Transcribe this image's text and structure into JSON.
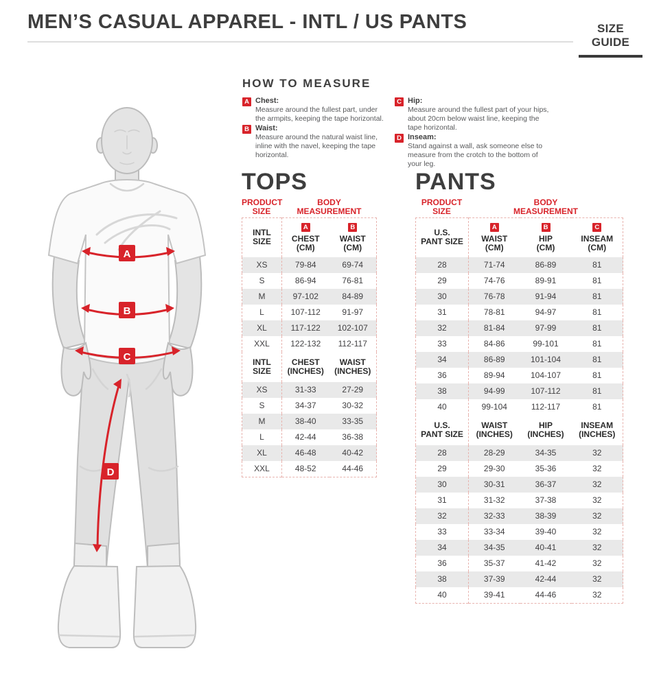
{
  "header": {
    "title": "MEN’S CASUAL APPAREL - INTL / US PANTS",
    "size_guide_label": "SIZE GUIDE"
  },
  "colors": {
    "accent": "#d8232a",
    "dash": "#e8b3ae",
    "heading": "#3e3e3e",
    "row_alt": "#e9e9e9",
    "desc_text": "#58595b",
    "cell_text": "#414042",
    "divider": "#dedede"
  },
  "how_to_measure": {
    "title": "HOW TO MEASURE",
    "items": [
      {
        "marker": "A",
        "label": "Chest:",
        "text": "Measure around the fullest part, under the armpits, keeping the tape horizontal."
      },
      {
        "marker": "B",
        "label": "Waist:",
        "text": "Measure around the natural waist line, inline with the navel, keeping the tape horizontal."
      },
      {
        "marker": "C",
        "label": "Hip:",
        "text": "Measure around the fullest part of your hips, about 20cm below waist line, keeping the tape horizontal."
      },
      {
        "marker": "D",
        "label": "Inseam:",
        "text": "Stand against a wall, ask someone else to measure from the crotch to the bottom of your leg."
      }
    ]
  },
  "figure": {
    "markers": [
      "A",
      "B",
      "C",
      "D"
    ]
  },
  "tops": {
    "title": "TOPS",
    "group_headers": {
      "product": "PRODUCT\nSIZE",
      "body": "BODY\nMEASUREMENT"
    },
    "cm": {
      "size_label": "INTL\nSIZE",
      "columns": [
        {
          "marker": "A",
          "label": "CHEST\n(CM)"
        },
        {
          "marker": "B",
          "label": "WAIST\n(CM)"
        }
      ],
      "rows": [
        {
          "size": "XS",
          "values": [
            "79-84",
            "69-74"
          ]
        },
        {
          "size": "S",
          "values": [
            "86-94",
            "76-81"
          ]
        },
        {
          "size": "M",
          "values": [
            "97-102",
            "84-89"
          ]
        },
        {
          "size": "L",
          "values": [
            "107-112",
            "91-97"
          ]
        },
        {
          "size": "XL",
          "values": [
            "117-122",
            "102-107"
          ]
        },
        {
          "size": "XXL",
          "values": [
            "122-132",
            "112-117"
          ]
        }
      ]
    },
    "inches": {
      "size_label": "INTL\nSIZE",
      "columns": [
        {
          "label": "CHEST\n(INCHES)"
        },
        {
          "label": "WAIST\n(INCHES)"
        }
      ],
      "rows": [
        {
          "size": "XS",
          "values": [
            "31-33",
            "27-29"
          ]
        },
        {
          "size": "S",
          "values": [
            "34-37",
            "30-32"
          ]
        },
        {
          "size": "M",
          "values": [
            "38-40",
            "33-35"
          ]
        },
        {
          "size": "L",
          "values": [
            "42-44",
            "36-38"
          ]
        },
        {
          "size": "XL",
          "values": [
            "46-48",
            "40-42"
          ]
        },
        {
          "size": "XXL",
          "values": [
            "48-52",
            "44-46"
          ]
        }
      ]
    }
  },
  "pants": {
    "title": "PANTS",
    "group_headers": {
      "product": "PRODUCT\nSIZE",
      "body": "BODY\nMEASUREMENT"
    },
    "cm": {
      "size_label": "U.S.\nPANT SIZE",
      "columns": [
        {
          "marker": "A",
          "label": "WAIST\n(CM)"
        },
        {
          "marker": "B",
          "label": "HIP\n(CM)"
        },
        {
          "marker": "C",
          "label": "INSEAM\n(CM)"
        }
      ],
      "rows": [
        {
          "size": "28",
          "values": [
            "71-74",
            "86-89",
            "81"
          ]
        },
        {
          "size": "29",
          "values": [
            "74-76",
            "89-91",
            "81"
          ]
        },
        {
          "size": "30",
          "values": [
            "76-78",
            "91-94",
            "81"
          ]
        },
        {
          "size": "31",
          "values": [
            "78-81",
            "94-97",
            "81"
          ]
        },
        {
          "size": "32",
          "values": [
            "81-84",
            "97-99",
            "81"
          ]
        },
        {
          "size": "33",
          "values": [
            "84-86",
            "99-101",
            "81"
          ]
        },
        {
          "size": "34",
          "values": [
            "86-89",
            "101-104",
            "81"
          ]
        },
        {
          "size": "36",
          "values": [
            "89-94",
            "104-107",
            "81"
          ]
        },
        {
          "size": "38",
          "values": [
            "94-99",
            "107-112",
            "81"
          ]
        },
        {
          "size": "40",
          "values": [
            "99-104",
            "112-117",
            "81"
          ]
        }
      ]
    },
    "inches": {
      "size_label": "U.S.\nPANT SIZE",
      "columns": [
        {
          "label": "WAIST\n(INCHES)"
        },
        {
          "label": "HIP\n(INCHES)"
        },
        {
          "label": "INSEAM\n(INCHES)"
        }
      ],
      "rows": [
        {
          "size": "28",
          "values": [
            "28-29",
            "34-35",
            "32"
          ]
        },
        {
          "size": "29",
          "values": [
            "29-30",
            "35-36",
            "32"
          ]
        },
        {
          "size": "30",
          "values": [
            "30-31",
            "36-37",
            "32"
          ]
        },
        {
          "size": "31",
          "values": [
            "31-32",
            "37-38",
            "32"
          ]
        },
        {
          "size": "32",
          "values": [
            "32-33",
            "38-39",
            "32"
          ]
        },
        {
          "size": "33",
          "values": [
            "33-34",
            "39-40",
            "32"
          ]
        },
        {
          "size": "34",
          "values": [
            "34-35",
            "40-41",
            "32"
          ]
        },
        {
          "size": "36",
          "values": [
            "35-37",
            "41-42",
            "32"
          ]
        },
        {
          "size": "38",
          "values": [
            "37-39",
            "42-44",
            "32"
          ]
        },
        {
          "size": "40",
          "values": [
            "39-41",
            "44-46",
            "32"
          ]
        }
      ]
    }
  }
}
